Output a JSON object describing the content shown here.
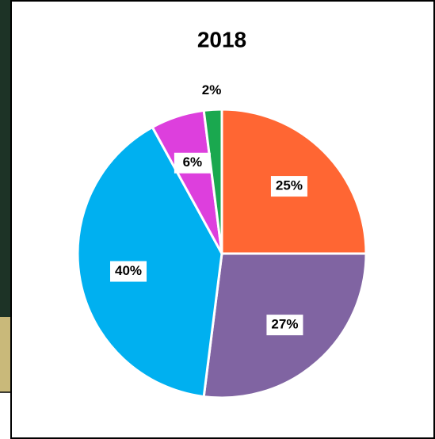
{
  "chart_data": {
    "type": "pie",
    "title": "2018",
    "categories": [
      null,
      null,
      null,
      null,
      null
    ],
    "values": [
      25,
      27,
      40,
      6,
      2
    ],
    "value_labels": [
      "25%",
      "27%",
      "40%",
      "6%",
      "2%"
    ],
    "colors": [
      "#ff6633",
      "#8064a2",
      "#00b0f0",
      "#dd3fdd",
      "#1aa84f"
    ]
  }
}
